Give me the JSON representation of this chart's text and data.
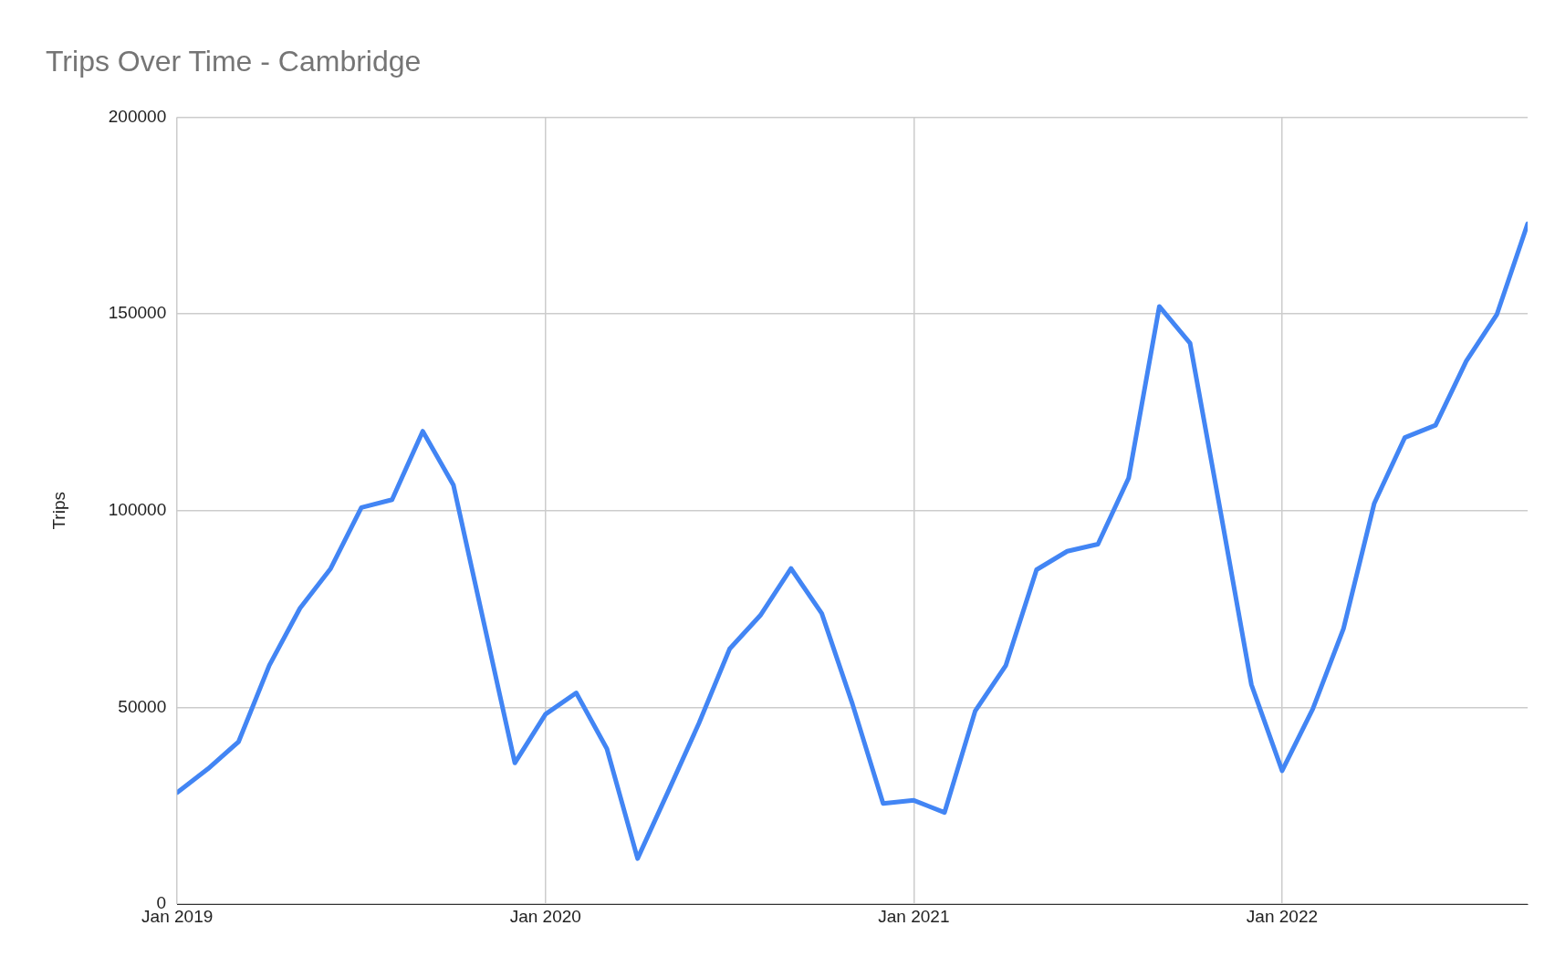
{
  "chart_data": {
    "type": "line",
    "title": "Trips Over Time - Cambridge",
    "ylabel": "Trips",
    "x": [
      "2019-01",
      "2019-02",
      "2019-03",
      "2019-04",
      "2019-05",
      "2019-06",
      "2019-07",
      "2019-08",
      "2019-09",
      "2019-10",
      "2019-11",
      "2019-12",
      "2020-01",
      "2020-02",
      "2020-03",
      "2020-04",
      "2020-05",
      "2020-06",
      "2020-07",
      "2020-08",
      "2020-09",
      "2020-10",
      "2020-11",
      "2020-12",
      "2021-01",
      "2021-02",
      "2021-03",
      "2021-04",
      "2021-05",
      "2021-06",
      "2021-07",
      "2021-08",
      "2021-09",
      "2021-10",
      "2021-11",
      "2021-12",
      "2022-01",
      "2022-02",
      "2022-03",
      "2022-04",
      "2022-05",
      "2022-06",
      "2022-07",
      "2022-08",
      "2022-09"
    ],
    "series": [
      {
        "color": "#4285f4",
        "values": [
          28400,
          34400,
          41300,
          60700,
          75200,
          85300,
          100800,
          102800,
          120200,
          106500,
          71200,
          35900,
          48300,
          53700,
          39500,
          11600,
          28700,
          46000,
          64900,
          73400,
          85300,
          73900,
          50900,
          25600,
          26400,
          23300,
          49100,
          60700,
          85000,
          89700,
          91500,
          108300,
          151900,
          142600,
          99500,
          55800,
          33900,
          49600,
          70000,
          101800,
          118600,
          121700,
          138000,
          149900,
          172900
        ]
      }
    ],
    "xlim": [
      "2019-01",
      "2022-09"
    ],
    "xticks": [
      {
        "value": "2019-01",
        "label": "Jan 2019"
      },
      {
        "value": "2020-01",
        "label": "Jan 2020"
      },
      {
        "value": "2021-01",
        "label": "Jan 2021"
      },
      {
        "value": "2022-01",
        "label": "Jan 2022"
      }
    ],
    "ylim": [
      0,
      200000
    ],
    "yticks": [
      0,
      50000,
      100000,
      150000,
      200000
    ],
    "grid": true,
    "legend": false,
    "marker": "none",
    "line_style": "solid"
  }
}
